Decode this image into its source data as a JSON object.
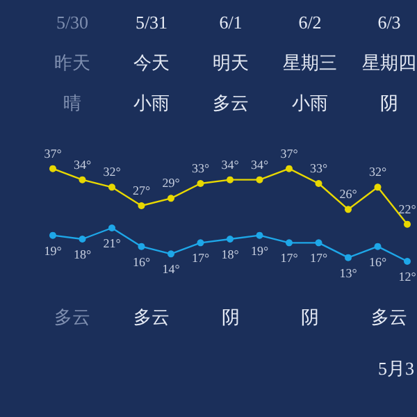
{
  "chart_data": {
    "type": "line",
    "categories": [
      null,
      null,
      null,
      null,
      null,
      null,
      null,
      null,
      null,
      null,
      null,
      null,
      null
    ],
    "tick_labels": false,
    "grid": false,
    "marker": "circle",
    "line_style": "solid",
    "series": [
      {
        "color": "#e8d800",
        "values": [
          37,
          34,
          32,
          27,
          29,
          33,
          34,
          34,
          37,
          33,
          26,
          32,
          22
        ],
        "value_labels": [
          "37°",
          "34°",
          "32°",
          "27°",
          "29°",
          "33°",
          "34°",
          "34°",
          "37°",
          "33°",
          "26°",
          "32°",
          "22°"
        ]
      },
      {
        "color": "#1ea7e8",
        "values": [
          19,
          18,
          21,
          16,
          14,
          17,
          18,
          19,
          17,
          17,
          13,
          16,
          12
        ],
        "value_labels": [
          "19°",
          "18°",
          "21°",
          "16°",
          "14°",
          "17°",
          "18°",
          "19°",
          "17°",
          "17°",
          "13°",
          "16°",
          "12°"
        ]
      }
    ],
    "annotations": [
      "5/30",
      "昨天",
      "晴",
      "5/31",
      "今天",
      "小雨",
      "6/1",
      "明天",
      "多云",
      "6/2",
      "星期三",
      "小雨",
      "6/3",
      "星期四",
      "阴",
      "多云",
      "多云",
      "阴",
      "阴",
      "多云",
      "5月3"
    ]
  }
}
